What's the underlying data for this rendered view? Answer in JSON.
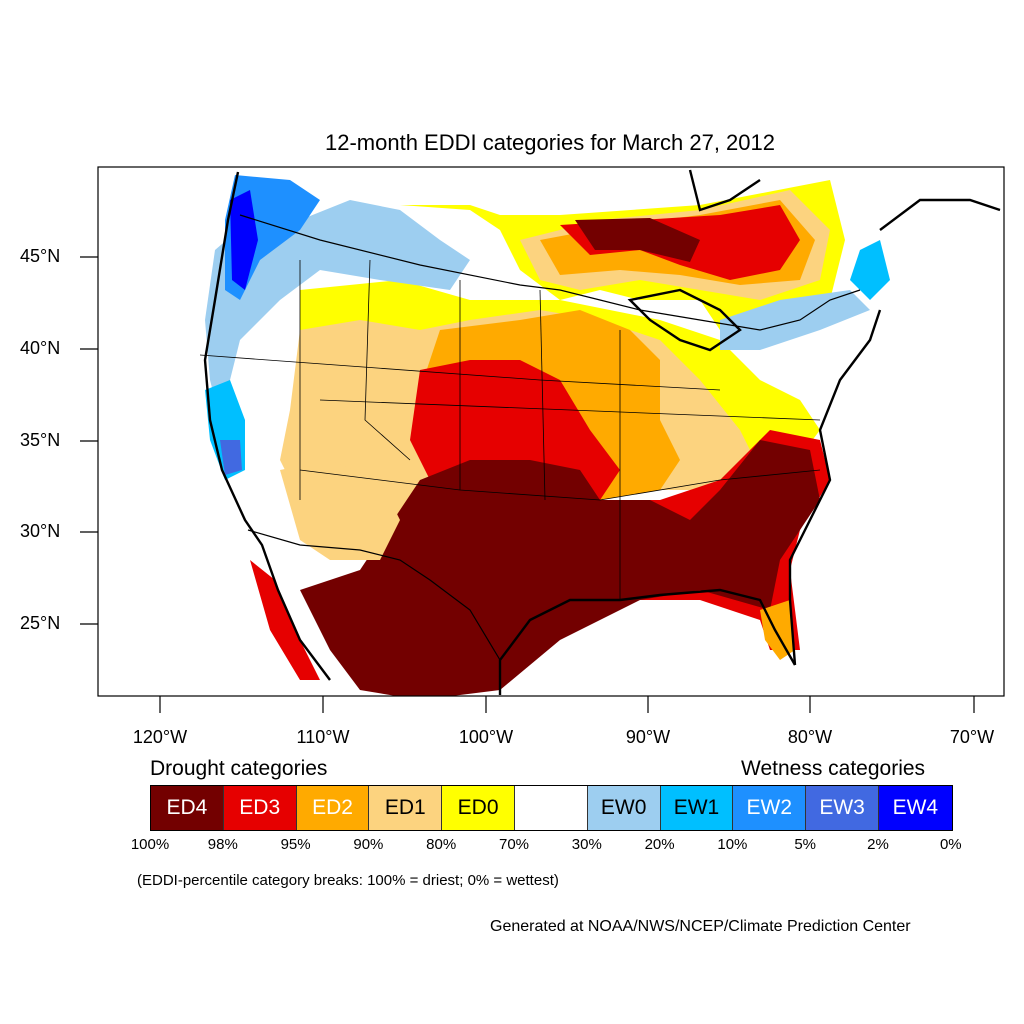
{
  "title": "12-month EDDI categories for March 27, 2012",
  "lat_labels": [
    "45°N",
    "40°N",
    "35°N",
    "30°N",
    "25°N"
  ],
  "lon_labels": [
    "120°W",
    "110°W",
    "100°W",
    "90°W",
    "80°W",
    "70°W"
  ],
  "drought_heading": "Drought categories",
  "wetness_heading": "Wetness categories",
  "legend": [
    {
      "label": "ED4",
      "color": "#730000",
      "text_color": "#ffffff"
    },
    {
      "label": "ED3",
      "color": "#e60000",
      "text_color": "#ffffff"
    },
    {
      "label": "ED2",
      "color": "#ffaa00",
      "text_color": "#ffffff"
    },
    {
      "label": "ED1",
      "color": "#fcd37f",
      "text_color": "#000000"
    },
    {
      "label": "ED0",
      "color": "#ffff00",
      "text_color": "#000000"
    },
    {
      "label": "",
      "color": "#ffffff",
      "text_color": "#000000"
    },
    {
      "label": "EW0",
      "color": "#9dcef0",
      "text_color": "#000000"
    },
    {
      "label": "EW1",
      "color": "#00bfff",
      "text_color": "#000000"
    },
    {
      "label": "EW2",
      "color": "#1e90ff",
      "text_color": "#ffffff"
    },
    {
      "label": "EW3",
      "color": "#4169e1",
      "text_color": "#ffffff"
    },
    {
      "label": "EW4",
      "color": "#0000ff",
      "text_color": "#ffffff"
    }
  ],
  "percent_breaks": [
    "100%",
    "98%",
    "95%",
    "90%",
    "80%",
    "70%",
    "30%",
    "20%",
    "10%",
    "5%",
    "2%",
    "0%"
  ],
  "note": "(EDDI-percentile category breaks: 100% = driest; 0% = wettest)",
  "credit": "Generated at NOAA/NWS/NCEP/Climate Prediction Center"
}
